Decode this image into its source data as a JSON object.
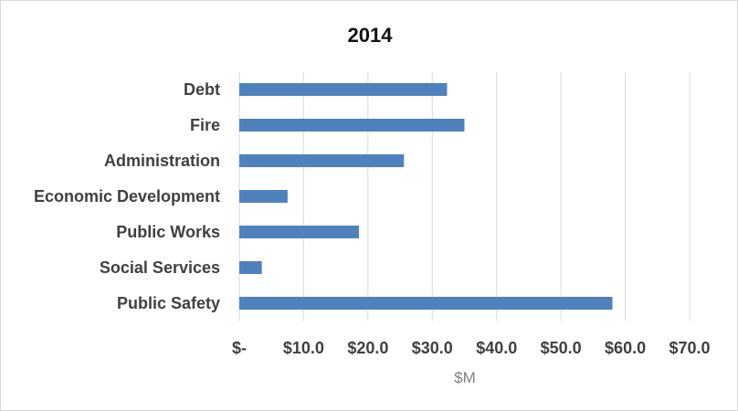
{
  "chart_data": {
    "type": "bar",
    "orientation": "horizontal",
    "title": "2014",
    "xlabel": "$M",
    "ylabel": "",
    "categories": [
      "Debt",
      "Fire",
      "Administration",
      "Economic Development",
      "Public Works",
      "Social Services",
      "Public Safety"
    ],
    "values": [
      32.3,
      35.0,
      25.6,
      7.5,
      18.6,
      3.5,
      58.0
    ],
    "xlim": [
      0,
      70
    ],
    "xticks": [
      0,
      10,
      20,
      30,
      40,
      50,
      60,
      70
    ],
    "xtick_labels": [
      "$-",
      "$10.0",
      "$20.0",
      "$30.0",
      "$40.0",
      "$50.0",
      "$60.0",
      "$70.0"
    ],
    "grid": true,
    "legend": "none",
    "bar_color": "#4f81bd"
  }
}
